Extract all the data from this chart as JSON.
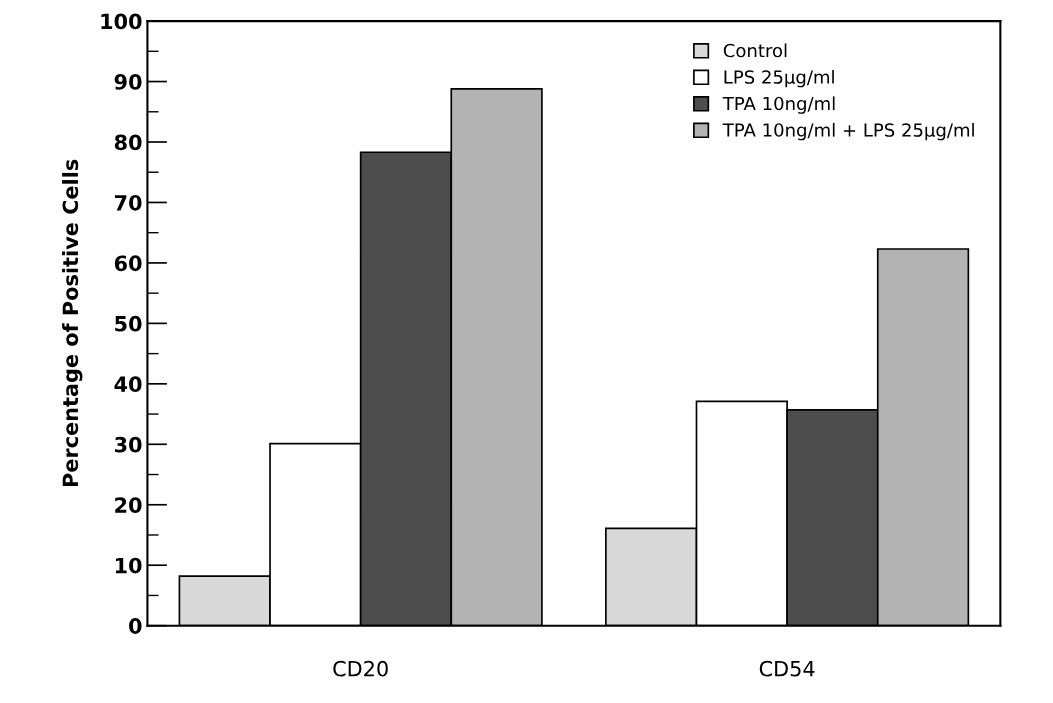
{
  "chart_data": {
    "type": "bar",
    "ylabel": "Percentage of Positive Cells",
    "categories": [
      "CD20",
      "CD54"
    ],
    "series": [
      {
        "name": "Control",
        "color": "#d9d9d9",
        "values": [
          8.2,
          16.1
        ]
      },
      {
        "name": "LPS 25µg/ml",
        "color": "#ffffff",
        "values": [
          30.1,
          37.1
        ]
      },
      {
        "name": "TPA 10ng/ml",
        "color": "#4d4d4d",
        "values": [
          78.3,
          35.7
        ]
      },
      {
        "name": "TPA 10ng/ml + LPS 25µg/ml",
        "color": "#b3b3b3",
        "values": [
          88.8,
          62.3
        ]
      }
    ],
    "ylim": [
      0,
      100
    ],
    "yticks": [
      0,
      10,
      20,
      30,
      40,
      50,
      60,
      70,
      80,
      90,
      100
    ],
    "grid": false,
    "legend": "top right"
  }
}
